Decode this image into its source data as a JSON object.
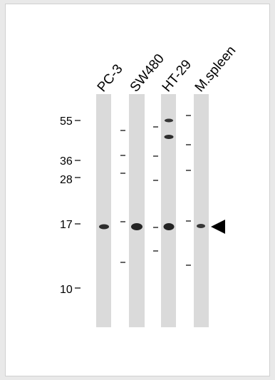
{
  "lanes": [
    {
      "label": "PC-3"
    },
    {
      "label": "SW480"
    },
    {
      "label": "HT-29"
    },
    {
      "label": "M.spleen"
    }
  ],
  "mw_markers": [
    {
      "label": "55"
    },
    {
      "label": "36"
    },
    {
      "label": "28"
    },
    {
      "label": "17"
    },
    {
      "label": "10"
    }
  ],
  "colors": {
    "page_background": "#e9e9e9",
    "panel_background": "#ffffff",
    "lane_fill": "#dadada",
    "band": "#1a1a1a",
    "arrow": "#000000"
  }
}
